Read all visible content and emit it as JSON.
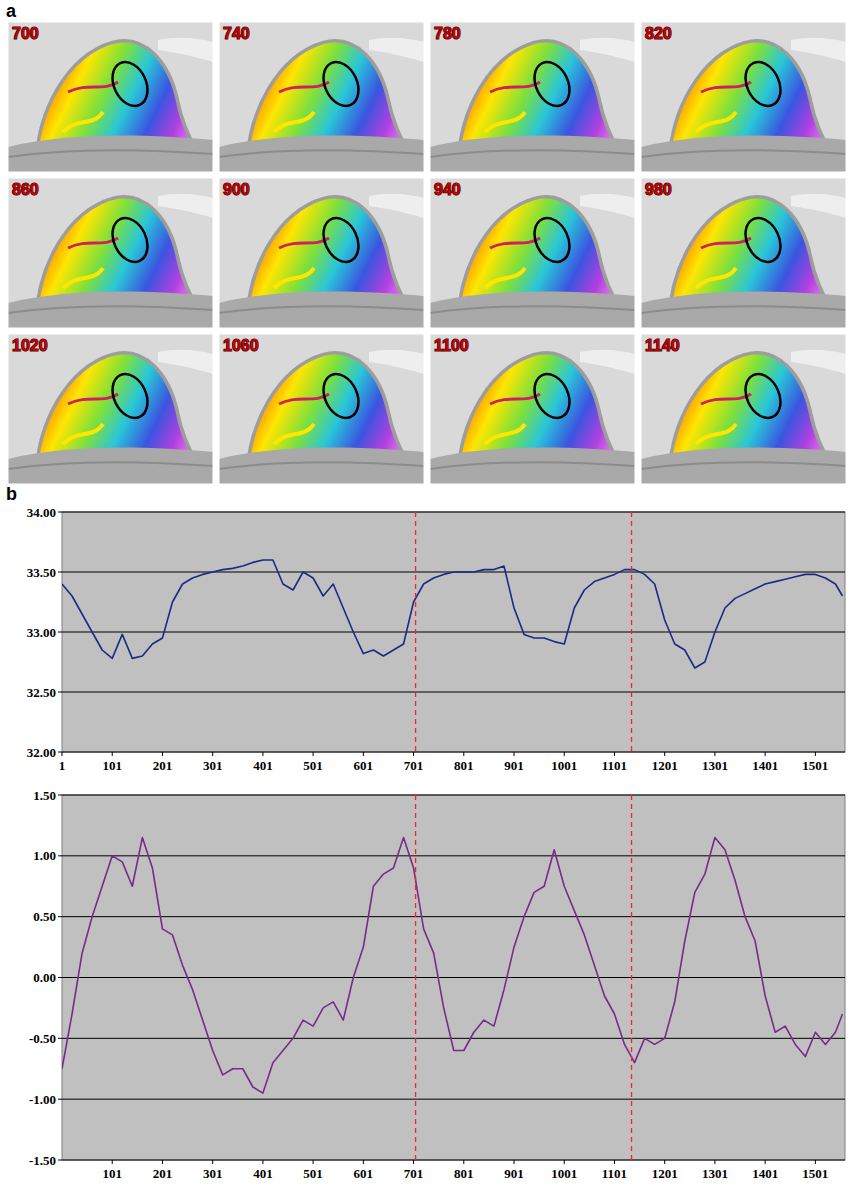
{
  "panel_a": {
    "label": "a",
    "frames": [
      700,
      740,
      780,
      820,
      860,
      900,
      940,
      980,
      1020,
      1060,
      1100,
      1140
    ]
  },
  "panel_b": {
    "label": "b"
  },
  "chart_data": [
    {
      "type": "line",
      "grid": true,
      "xlim": [
        1,
        1560
      ],
      "xticks": [
        1,
        101,
        201,
        301,
        401,
        501,
        601,
        701,
        801,
        901,
        1001,
        1101,
        1201,
        1301,
        1401,
        1501
      ],
      "ylim": [
        32,
        34
      ],
      "yticks": [
        {
          "value": 32,
          "label": "32.00"
        },
        {
          "value": 32.5,
          "label": "32.50"
        },
        {
          "value": 33,
          "label": "33.00"
        },
        {
          "value": 33.5,
          "label": "33.50"
        },
        {
          "value": 34,
          "label": "34.00"
        }
      ],
      "vlines": [
        705,
        1135
      ],
      "x": [
        1,
        21,
        41,
        61,
        81,
        101,
        121,
        141,
        161,
        181,
        201,
        221,
        241,
        261,
        281,
        301,
        321,
        341,
        361,
        381,
        401,
        421,
        441,
        461,
        481,
        501,
        521,
        541,
        561,
        581,
        601,
        621,
        641,
        661,
        681,
        701,
        721,
        741,
        761,
        781,
        801,
        821,
        841,
        861,
        881,
        901,
        921,
        941,
        961,
        981,
        1001,
        1021,
        1041,
        1061,
        1081,
        1101,
        1121,
        1141,
        1161,
        1181,
        1201,
        1221,
        1241,
        1261,
        1281,
        1301,
        1321,
        1341,
        1361,
        1381,
        1401,
        1421,
        1441,
        1461,
        1481,
        1501,
        1521,
        1541,
        1555
      ],
      "series": [
        {
          "color": "#1c2a86",
          "values": [
            33.4,
            33.3,
            33.15,
            33.0,
            32.85,
            32.78,
            32.98,
            32.78,
            32.8,
            32.9,
            32.95,
            33.25,
            33.4,
            33.45,
            33.48,
            33.5,
            33.52,
            33.53,
            33.55,
            33.58,
            33.6,
            33.6,
            33.4,
            33.35,
            33.5,
            33.45,
            33.3,
            33.4,
            33.2,
            33.0,
            32.82,
            32.85,
            32.8,
            32.85,
            32.9,
            33.25,
            33.4,
            33.45,
            33.48,
            33.5,
            33.5,
            33.5,
            33.52,
            33.52,
            33.55,
            33.2,
            32.98,
            32.95,
            32.95,
            32.92,
            32.9,
            33.2,
            33.35,
            33.42,
            33.45,
            33.48,
            33.52,
            33.52,
            33.48,
            33.4,
            33.1,
            32.9,
            32.85,
            32.7,
            32.75,
            33.0,
            33.2,
            33.28,
            33.32,
            33.36,
            33.4,
            33.42,
            33.44,
            33.46,
            33.48,
            33.48,
            33.45,
            33.4,
            33.3
          ]
        }
      ]
    },
    {
      "type": "line",
      "grid": true,
      "xlim": [
        1,
        1560
      ],
      "xticks": [
        101,
        201,
        301,
        401,
        501,
        601,
        701,
        801,
        901,
        1001,
        1101,
        1201,
        1301,
        1401,
        1501
      ],
      "ylim": [
        -1.5,
        1.5
      ],
      "yticks": [
        {
          "value": -1.5,
          "label": "-1.50"
        },
        {
          "value": -1,
          "label": "-1.00"
        },
        {
          "value": -0.5,
          "label": "-0.50"
        },
        {
          "value": 0,
          "label": "0.00"
        },
        {
          "value": 0.5,
          "label": "0.50"
        },
        {
          "value": 1,
          "label": "1.00"
        },
        {
          "value": 1.5,
          "label": "1.50"
        }
      ],
      "vlines": [
        705,
        1135
      ],
      "x": [
        1,
        21,
        41,
        61,
        81,
        101,
        121,
        141,
        161,
        181,
        201,
        221,
        241,
        261,
        281,
        301,
        321,
        341,
        361,
        381,
        401,
        421,
        441,
        461,
        481,
        501,
        521,
        541,
        561,
        581,
        601,
        621,
        641,
        661,
        681,
        701,
        721,
        741,
        761,
        781,
        801,
        821,
        841,
        861,
        881,
        901,
        921,
        941,
        961,
        981,
        1001,
        1021,
        1041,
        1061,
        1081,
        1101,
        1121,
        1141,
        1161,
        1181,
        1201,
        1221,
        1241,
        1261,
        1281,
        1301,
        1321,
        1341,
        1361,
        1381,
        1401,
        1421,
        1441,
        1461,
        1481,
        1501,
        1521,
        1541,
        1555
      ],
      "series": [
        {
          "color": "#7a2a8c",
          "values": [
            -0.75,
            -0.3,
            0.2,
            0.5,
            0.75,
            1.0,
            0.95,
            0.75,
            1.15,
            0.9,
            0.4,
            0.35,
            0.1,
            -0.1,
            -0.35,
            -0.6,
            -0.8,
            -0.75,
            -0.75,
            -0.9,
            -0.95,
            -0.7,
            -0.6,
            -0.5,
            -0.35,
            -0.4,
            -0.25,
            -0.2,
            -0.35,
            0.0,
            0.25,
            0.75,
            0.85,
            0.9,
            1.15,
            0.9,
            0.4,
            0.2,
            -0.25,
            -0.6,
            -0.6,
            -0.45,
            -0.35,
            -0.4,
            -0.1,
            0.25,
            0.5,
            0.7,
            0.75,
            1.05,
            0.75,
            0.55,
            0.35,
            0.1,
            -0.15,
            -0.3,
            -0.55,
            -0.7,
            -0.5,
            -0.55,
            -0.5,
            -0.2,
            0.3,
            0.7,
            0.85,
            1.15,
            1.05,
            0.8,
            0.5,
            0.3,
            -0.15,
            -0.45,
            -0.4,
            -0.55,
            -0.65,
            -0.45,
            -0.55,
            -0.45,
            -0.3
          ]
        }
      ]
    }
  ]
}
